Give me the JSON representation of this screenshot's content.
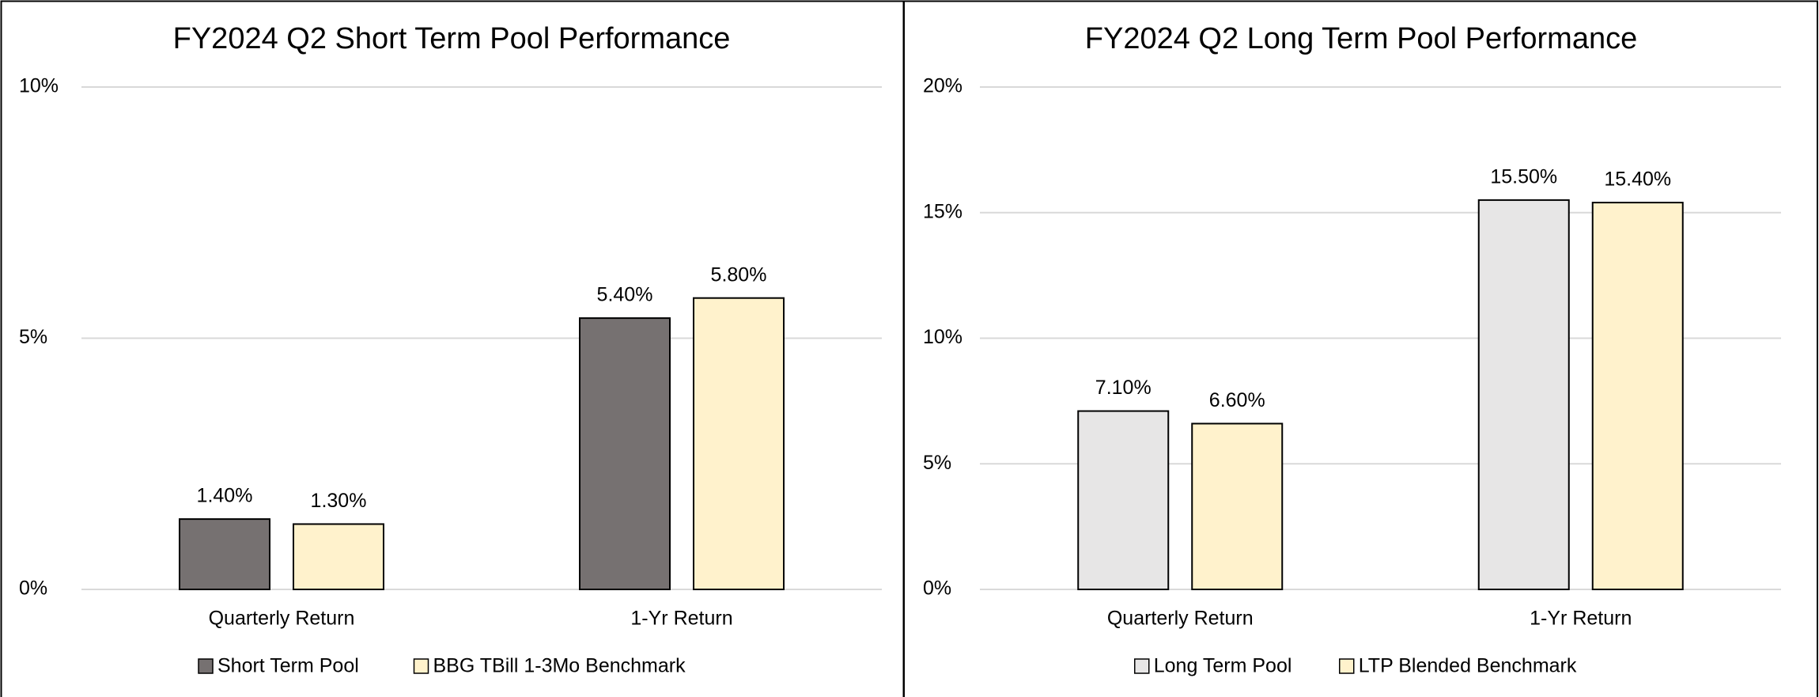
{
  "chart_data": [
    {
      "type": "bar",
      "title": "FY2024 Q2 Short Term Pool Performance",
      "categories": [
        "Quarterly Return",
        "1-Yr Return"
      ],
      "series": [
        {
          "name": "Short Term Pool",
          "color": "#767171",
          "values": [
            1.4,
            5.4
          ],
          "value_labels": [
            "1.40%",
            "5.40%"
          ]
        },
        {
          "name": "BBG TBill 1-3Mo Benchmark",
          "color": "#fff2cc",
          "values": [
            1.3,
            5.8
          ],
          "value_labels": [
            "1.30%",
            "5.80%"
          ]
        }
      ],
      "ylim": [
        0,
        10
      ],
      "yticks": [
        {
          "value": 0,
          "label": "0%"
        },
        {
          "value": 5,
          "label": "5%"
        },
        {
          "value": 10,
          "label": "10%"
        }
      ],
      "grid": true,
      "legend": "bottom"
    },
    {
      "type": "bar",
      "title": "FY2024 Q2 Long Term Pool Performance",
      "categories": [
        "Quarterly Return",
        "1-Yr Return"
      ],
      "series": [
        {
          "name": "Long Term Pool",
          "color": "#e7e6e6",
          "values": [
            7.1,
            15.5
          ],
          "value_labels": [
            "7.10%",
            "15.50%"
          ]
        },
        {
          "name": "LTP Blended Benchmark",
          "color": "#fff2cc",
          "values": [
            6.6,
            15.4
          ],
          "value_labels": [
            "6.60%",
            "15.40%"
          ]
        }
      ],
      "ylim": [
        0,
        20
      ],
      "yticks": [
        {
          "value": 0,
          "label": "0%"
        },
        {
          "value": 5,
          "label": "5%"
        },
        {
          "value": 10,
          "label": "10%"
        },
        {
          "value": 15,
          "label": "15%"
        },
        {
          "value": 20,
          "label": "20%"
        }
      ],
      "grid": true,
      "legend": "bottom"
    }
  ]
}
